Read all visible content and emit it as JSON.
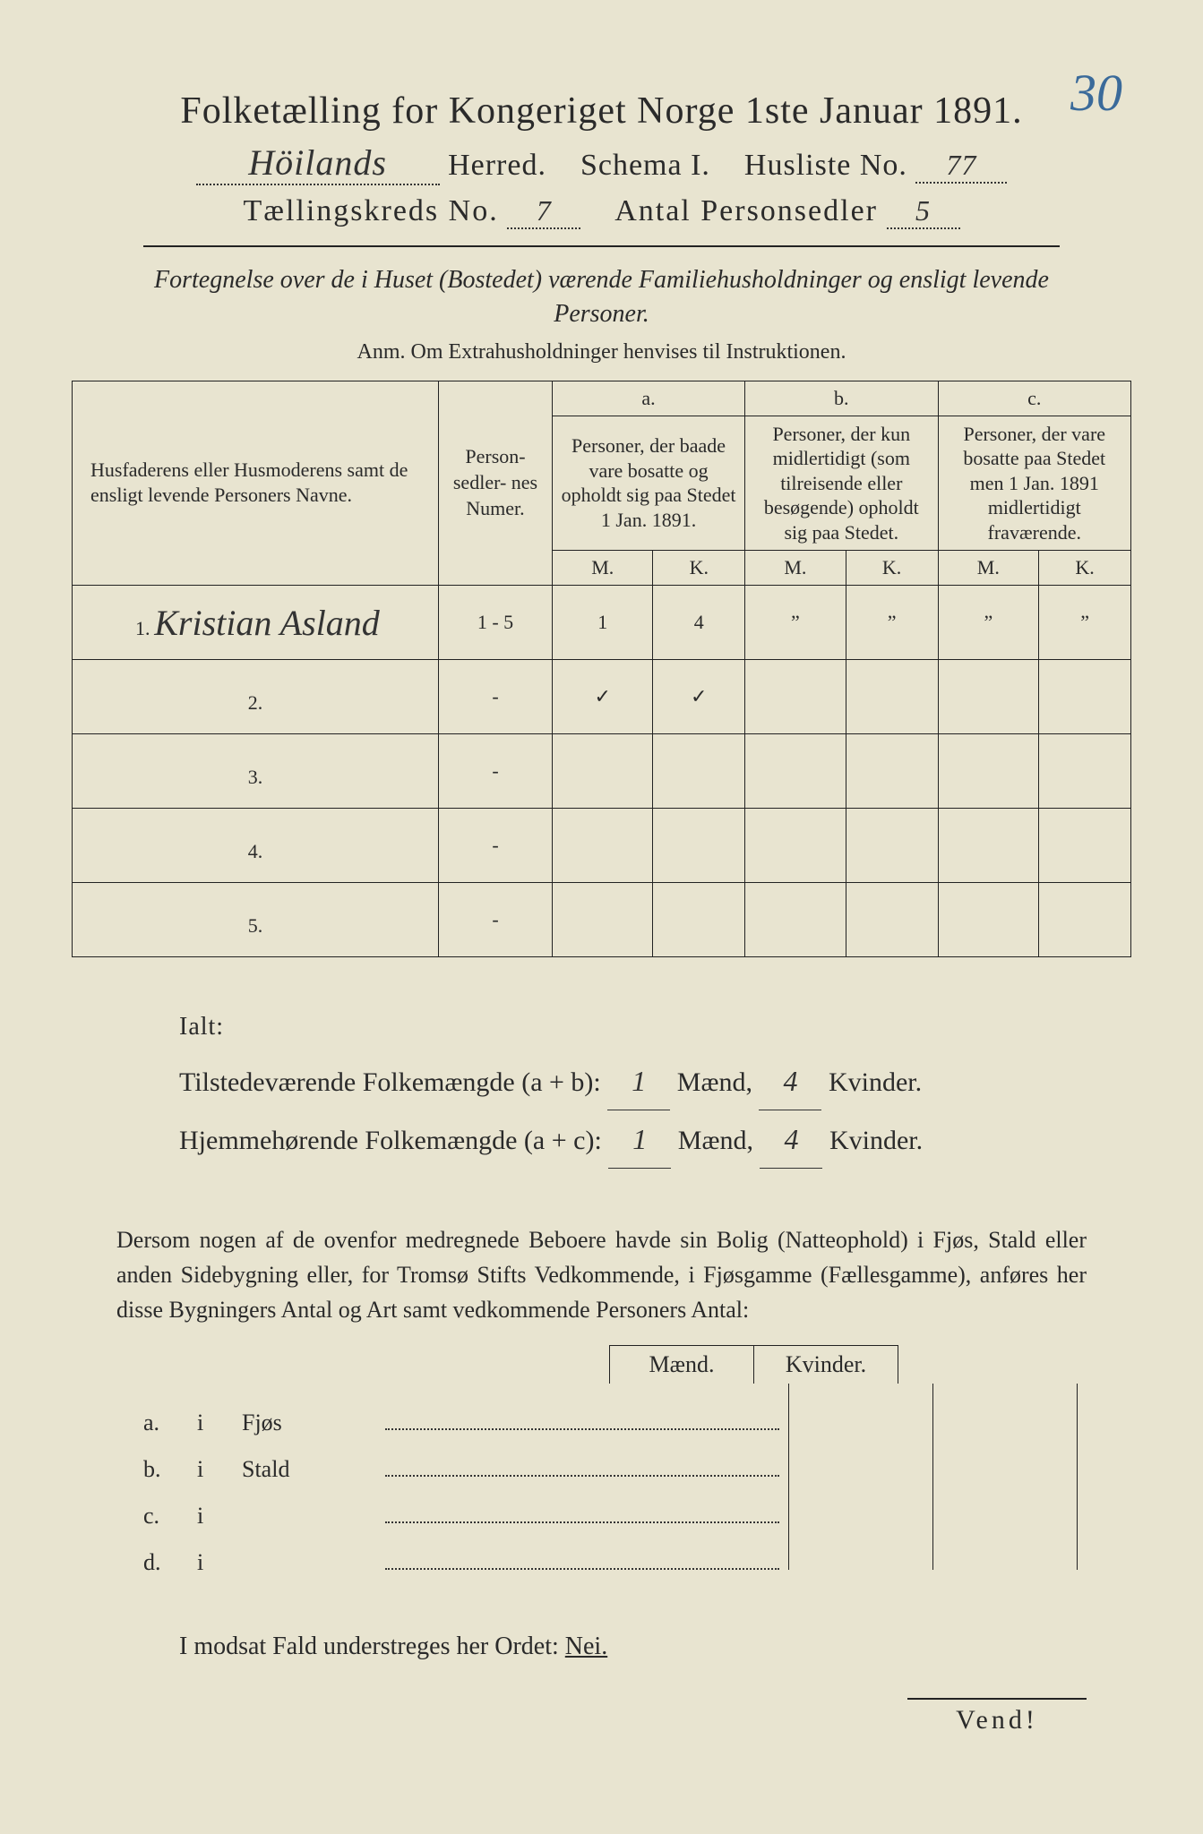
{
  "corner_number": "30",
  "title": "Folketælling for Kongeriget Norge 1ste Januar 1891.",
  "line2": {
    "herred_value": "Höilands",
    "herred_label": "Herred.",
    "schema_label": "Schema I.",
    "husliste_label": "Husliste No.",
    "husliste_value": "77"
  },
  "line3": {
    "kreds_label": "Tællingskreds No.",
    "kreds_value": "7",
    "antal_label": "Antal Personsedler",
    "antal_value": "5"
  },
  "intro": "Fortegnelse over de i Huset (Bostedet) værende Familiehusholdninger og ensligt levende Personer.",
  "anm": "Anm. Om Extrahusholdninger henvises til Instruktionen.",
  "table": {
    "head_names": "Husfaderens eller Husmoderens samt de ensligt levende Personers Navne.",
    "head_numer": "Person-\nsedler-\nnes\nNumer.",
    "col_a_label": "a.",
    "col_a_text": "Personer, der baade vare bosatte og opholdt sig paa Stedet 1 Jan. 1891.",
    "col_b_label": "b.",
    "col_b_text": "Personer, der kun midlertidigt (som tilreisende eller besøgende) opholdt sig paa Stedet.",
    "col_c_label": "c.",
    "col_c_text": "Personer, der vare bosatte paa Stedet men 1 Jan. 1891 midlertidigt fraværende.",
    "m": "M.",
    "k": "K.",
    "rows": [
      {
        "n": "1.",
        "name": "Kristian Asland",
        "numer": "1 - 5",
        "a_m": "1",
        "a_k": "4",
        "b_m": "”",
        "b_k": "”",
        "c_m": "”",
        "c_k": "”"
      },
      {
        "n": "2.",
        "name": "",
        "numer": "-",
        "a_m": "✓",
        "a_k": "✓",
        "b_m": "",
        "b_k": "",
        "c_m": "",
        "c_k": ""
      },
      {
        "n": "3.",
        "name": "",
        "numer": "-",
        "a_m": "",
        "a_k": "",
        "b_m": "",
        "b_k": "",
        "c_m": "",
        "c_k": ""
      },
      {
        "n": "4.",
        "name": "",
        "numer": "-",
        "a_m": "",
        "a_k": "",
        "b_m": "",
        "b_k": "",
        "c_m": "",
        "c_k": ""
      },
      {
        "n": "5.",
        "name": "",
        "numer": "-",
        "a_m": "",
        "a_k": "",
        "b_m": "",
        "b_k": "",
        "c_m": "",
        "c_k": ""
      }
    ]
  },
  "ialt": {
    "label": "Ialt:",
    "line1_label": "Tilstedeværende Folkemængde (a + b):",
    "line1_m": "1",
    "line1_k": "4",
    "line2_label": "Hjemmehørende Folkemængde (a + c):",
    "line2_m": "1",
    "line2_k": "4",
    "maend": "Mænd,",
    "kvinder": "Kvinder."
  },
  "paragraph": "Dersom nogen af de ovenfor medregnede Beboere havde sin Bolig (Natteophold) i Fjøs, Stald eller anden Sidebygning eller, for Tromsø Stifts Vedkommende, i Fjøsgamme (Fællesgamme), anføres her disse Bygningers Antal og Art samt vedkommende Personers Antal:",
  "fjos": {
    "maend": "Mænd.",
    "kvinder": "Kvinder.",
    "rows": [
      {
        "l": "a.",
        "i": "i",
        "name": "Fjøs"
      },
      {
        "l": "b.",
        "i": "i",
        "name": "Stald"
      },
      {
        "l": "c.",
        "i": "i",
        "name": ""
      },
      {
        "l": "d.",
        "i": "i",
        "name": ""
      }
    ]
  },
  "nei_line": "I modsat Fald understreges her Ordet:",
  "nei": "Nei.",
  "vend": "Vend!"
}
